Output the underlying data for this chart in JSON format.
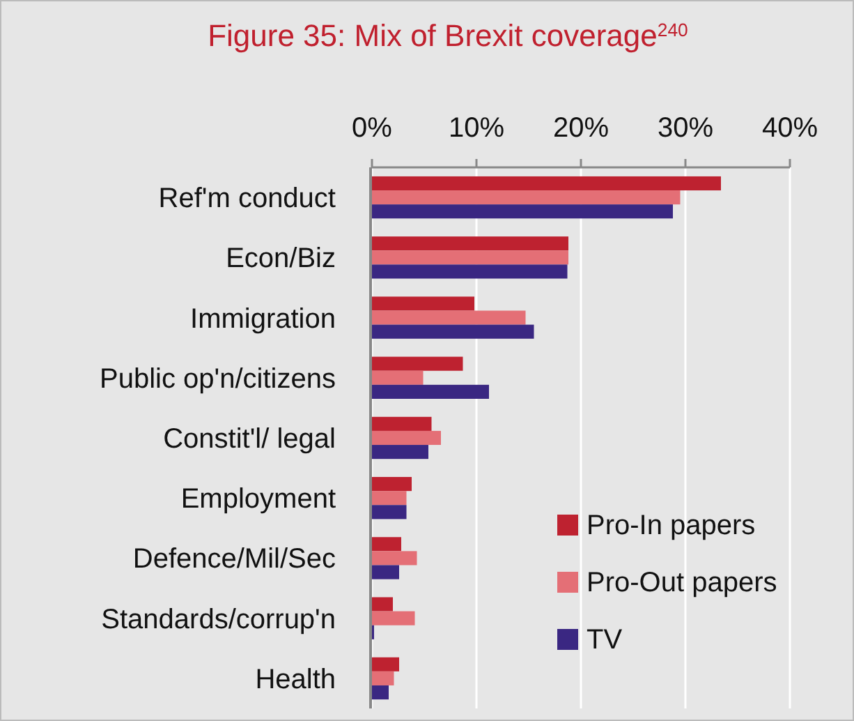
{
  "chart_data": {
    "type": "bar",
    "orientation": "horizontal",
    "title": "Figure 35: Mix of Brexit coverage$^{240}$",
    "categories": [
      "Ref'm conduct",
      "Econ/Biz",
      "Immigration",
      "Public op'n/citizens",
      "Constit'l/ legal",
      "Employment",
      "Defence/Mil/Sec",
      "Standards/corrup'n",
      "Health"
    ],
    "series": [
      {
        "name": "Pro-In papers",
        "color": "#be2230",
        "values": [
          33.4,
          18.8,
          9.8,
          8.7,
          5.7,
          3.8,
          2.8,
          2.0,
          2.6
        ]
      },
      {
        "name": "Pro-Out papers",
        "color": "#e46f76",
        "values": [
          29.5,
          18.8,
          14.7,
          4.9,
          6.6,
          3.3,
          4.3,
          4.1,
          2.1
        ]
      },
      {
        "name": "TV",
        "color": "#3a2782",
        "values": [
          28.8,
          18.7,
          15.5,
          11.2,
          5.4,
          3.3,
          2.6,
          0.2,
          1.6
        ]
      }
    ],
    "xlim": [
      0,
      40
    ],
    "xticks": [
      {
        "value": 0,
        "label": "0%"
      },
      {
        "value": 10,
        "label": "10%"
      },
      {
        "value": 20,
        "label": "20%"
      },
      {
        "value": 30,
        "label": "30%"
      },
      {
        "value": 40,
        "label": "40%"
      }
    ],
    "grid": "x",
    "legend": "bottom right"
  }
}
